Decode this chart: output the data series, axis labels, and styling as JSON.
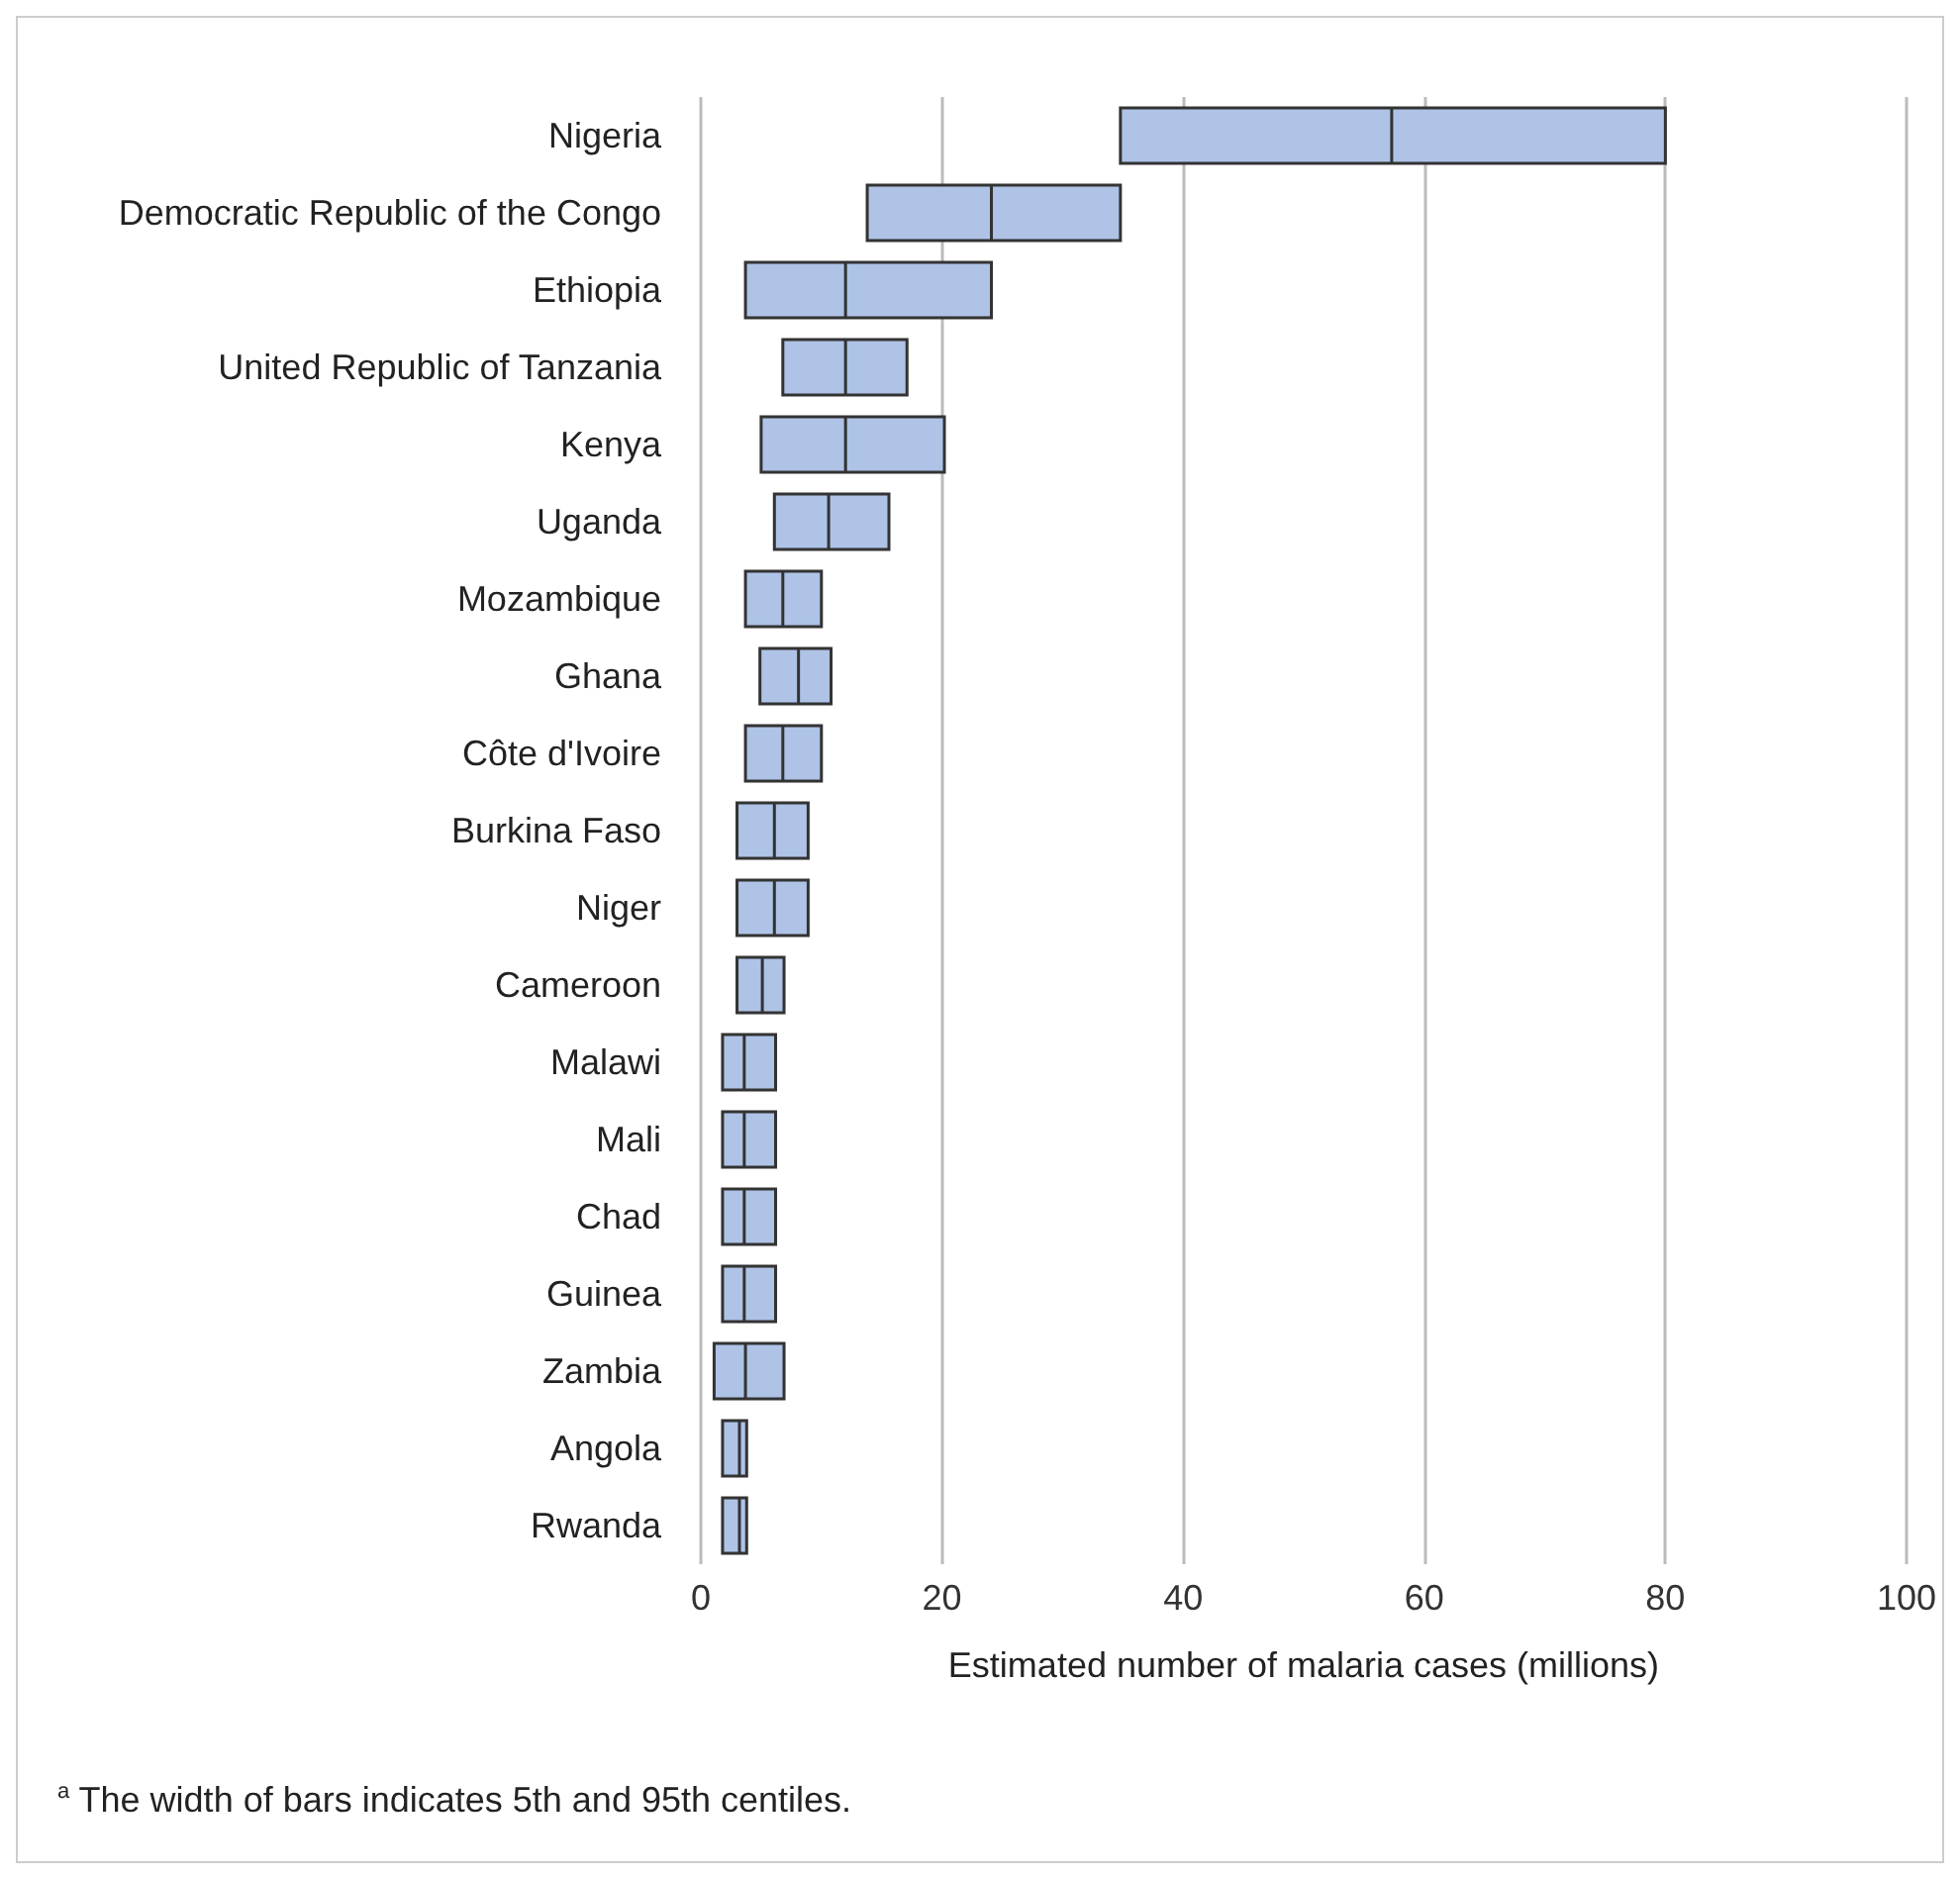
{
  "chart_data": {
    "type": "box",
    "orientation": "horizontal",
    "xlabel": "Estimated number of malaria cases (millions)",
    "annotations": [
      "$^{a}$ The width of bars indicates 5th and 95th centiles."
    ],
    "categories": [
      "Nigeria",
      "Democratic Republic of the Congo",
      "Ethiopia",
      "United Republic of Tanzania",
      "Kenya",
      "Uganda",
      "Mozambique",
      "Ghana",
      "Côte d'Ivoire",
      "Burkina Faso",
      "Niger",
      "Cameroon",
      "Malawi",
      "Mali",
      "Chad",
      "Guinea",
      "Zambia",
      "Angola",
      "Rwanda"
    ],
    "color": "#aec3e6",
    "boxes": [
      {
        "low": 34.8,
        "q1": 34.8,
        "median": 57.3,
        "q3": 80,
        "high": 80
      },
      {
        "low": 13.8,
        "q1": 13.8,
        "median": 24.1,
        "q3": 34.8,
        "high": 34.8
      },
      {
        "low": 3.7,
        "q1": 3.7,
        "median": 12,
        "q3": 24.1,
        "high": 24.1
      },
      {
        "low": 6.8,
        "q1": 6.8,
        "median": 12,
        "q3": 17.1,
        "high": 17.1
      },
      {
        "low": 5,
        "q1": 5,
        "median": 12,
        "q3": 20.2,
        "high": 20.2
      },
      {
        "low": 6.1,
        "q1": 6.1,
        "median": 10.6,
        "q3": 15.6,
        "high": 15.6
      },
      {
        "low": 3.7,
        "q1": 3.7,
        "median": 6.8,
        "q3": 10,
        "high": 10
      },
      {
        "low": 4.9,
        "q1": 4.9,
        "median": 8.1,
        "q3": 10.8,
        "high": 10.8
      },
      {
        "low": 3.7,
        "q1": 3.7,
        "median": 6.8,
        "q3": 10,
        "high": 10
      },
      {
        "low": 3,
        "q1": 3,
        "median": 6.1,
        "q3": 8.9,
        "high": 8.9
      },
      {
        "low": 3,
        "q1": 3,
        "median": 6.1,
        "q3": 8.9,
        "high": 8.9
      },
      {
        "low": 3,
        "q1": 3,
        "median": 5.1,
        "q3": 6.9,
        "high": 6.9
      },
      {
        "low": 1.8,
        "q1": 1.8,
        "median": 3.6,
        "q3": 6.2,
        "high": 6.2
      },
      {
        "low": 1.8,
        "q1": 1.8,
        "median": 3.6,
        "q3": 6.2,
        "high": 6.2
      },
      {
        "low": 1.8,
        "q1": 1.8,
        "median": 3.6,
        "q3": 6.2,
        "high": 6.2
      },
      {
        "low": 1.8,
        "q1": 1.8,
        "median": 3.6,
        "q3": 6.2,
        "high": 6.2
      },
      {
        "low": 1.1,
        "q1": 1.1,
        "median": 3.7,
        "q3": 6.9,
        "high": 6.9
      },
      {
        "low": 1.8,
        "q1": 1.8,
        "median": 3.2,
        "q3": 3.8,
        "high": 3.8
      },
      {
        "low": 1.8,
        "q1": 1.8,
        "median": 3.2,
        "q3": 3.8,
        "high": 3.8
      }
    ],
    "xlim": [
      0,
      100
    ],
    "xticks": [
      0,
      20,
      40,
      60,
      80,
      100
    ],
    "grid": "x"
  }
}
